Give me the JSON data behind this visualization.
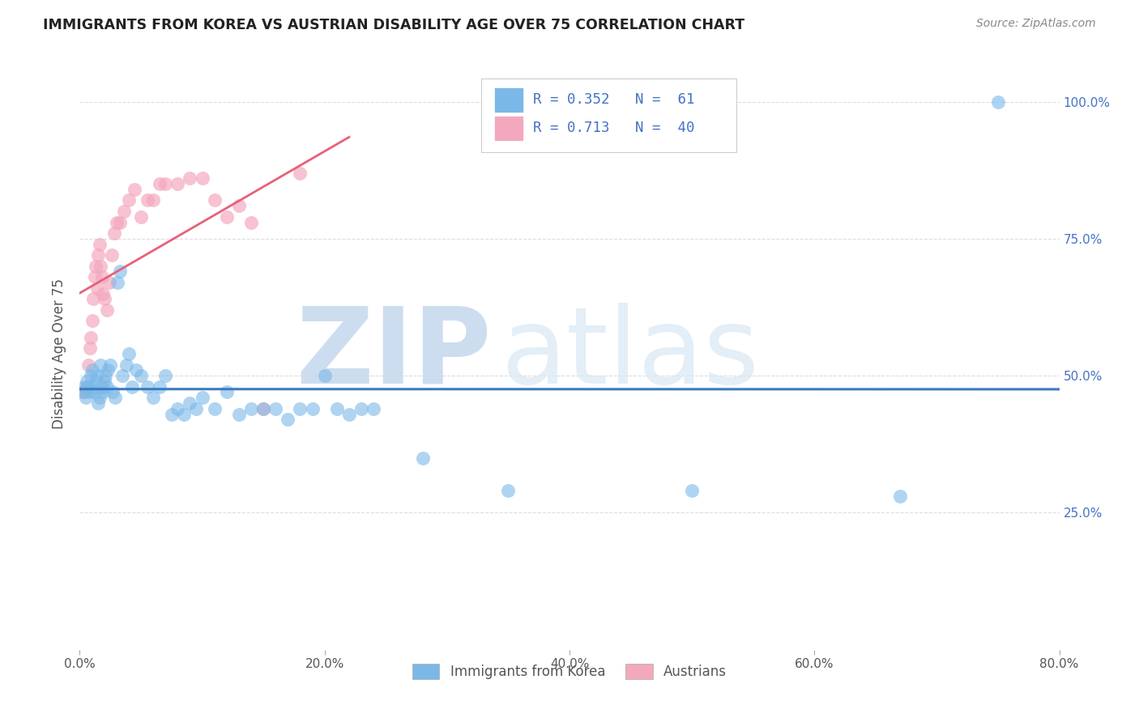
{
  "title": "IMMIGRANTS FROM KOREA VS AUSTRIAN DISABILITY AGE OVER 75 CORRELATION CHART",
  "source": "Source: ZipAtlas.com",
  "ylabel": "Disability Age Over 75",
  "x_tick_labels": [
    "0.0%",
    "20.0%",
    "40.0%",
    "60.0%",
    "80.0%"
  ],
  "x_tick_values": [
    0,
    20,
    40,
    60,
    80
  ],
  "y_tick_labels": [
    "25.0%",
    "50.0%",
    "75.0%",
    "100.0%"
  ],
  "y_tick_values": [
    25,
    50,
    75,
    100
  ],
  "xlim": [
    0,
    80
  ],
  "ylim": [
    0,
    108
  ],
  "legend_labels": [
    "Immigrants from Korea",
    "Austrians"
  ],
  "korea_R": 0.352,
  "korea_N": 61,
  "austria_R": 0.713,
  "austria_N": 40,
  "blue_color": "#7ab8e8",
  "blue_line_color": "#3a7bbf",
  "pink_color": "#f4a8be",
  "pink_line_color": "#e8607a",
  "watermark_color": "#ccddf0",
  "title_color": "#222222",
  "axis_label_color": "#555555",
  "tick_color_right": "#4472c4",
  "grid_color": "#dddddd",
  "background_color": "#ffffff",
  "korea_x": [
    0.3,
    0.4,
    0.5,
    0.6,
    0.7,
    0.8,
    0.9,
    1.0,
    1.1,
    1.2,
    1.3,
    1.4,
    1.5,
    1.6,
    1.7,
    1.8,
    1.9,
    2.0,
    2.1,
    2.2,
    2.3,
    2.5,
    2.7,
    2.9,
    3.1,
    3.3,
    3.5,
    3.8,
    4.0,
    4.3,
    4.6,
    5.0,
    5.5,
    6.0,
    6.5,
    7.0,
    7.5,
    8.0,
    8.5,
    9.0,
    9.5,
    10.0,
    11.0,
    12.0,
    13.0,
    14.0,
    15.0,
    16.0,
    17.0,
    18.0,
    19.0,
    20.0,
    21.0,
    22.0,
    23.0,
    24.0,
    28.0,
    35.0,
    50.0,
    67.0,
    75.0
  ],
  "korea_y": [
    47,
    48,
    46,
    49,
    48,
    47,
    50,
    51,
    48,
    47,
    49,
    50,
    45,
    46,
    52,
    48,
    47,
    49,
    50,
    48,
    51,
    52,
    47,
    46,
    67,
    69,
    50,
    52,
    54,
    48,
    51,
    50,
    48,
    46,
    48,
    50,
    43,
    44,
    43,
    45,
    44,
    46,
    44,
    47,
    43,
    44,
    44,
    44,
    42,
    44,
    44,
    50,
    44,
    43,
    44,
    44,
    35,
    29,
    29,
    28,
    100
  ],
  "austria_x": [
    0.3,
    0.5,
    0.6,
    0.7,
    0.8,
    0.9,
    1.0,
    1.1,
    1.2,
    1.3,
    1.4,
    1.5,
    1.6,
    1.7,
    1.8,
    1.9,
    2.0,
    2.2,
    2.4,
    2.6,
    2.8,
    3.0,
    3.3,
    3.6,
    4.0,
    4.5,
    5.0,
    5.5,
    6.0,
    6.5,
    7.0,
    8.0,
    9.0,
    10.0,
    11.0,
    12.0,
    13.0,
    14.0,
    15.0,
    18.0
  ],
  "austria_y": [
    47,
    47,
    48,
    52,
    55,
    57,
    60,
    64,
    68,
    70,
    66,
    72,
    74,
    70,
    68,
    65,
    64,
    62,
    67,
    72,
    76,
    78,
    78,
    80,
    82,
    84,
    79,
    82,
    82,
    85,
    85,
    85,
    86,
    86,
    82,
    79,
    81,
    78,
    44,
    87
  ],
  "watermark_zip": "ZIP",
  "watermark_atlas": "atlas"
}
